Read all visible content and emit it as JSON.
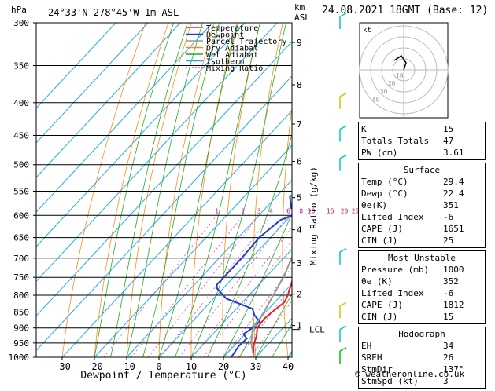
{
  "chart_data": {
    "type": "line",
    "subtype": "skew-t log-p sounding",
    "location": "24°33'N  278°45'W  1m  ASL",
    "datetime": "24.08.2021  18GMT  (Base: 12)",
    "y_unit_label": "hPa",
    "xlabel": "Dewpoint / Temperature (°C)",
    "x_ticks": [
      "-30",
      "-20",
      "-10",
      "0",
      "10",
      "20",
      "30",
      "40"
    ],
    "p_levels": [
      "300",
      "350",
      "400",
      "450",
      "500",
      "550",
      "600",
      "650",
      "700",
      "750",
      "800",
      "850",
      "900",
      "950",
      "1000"
    ],
    "alt_unit_label": "km\nASL",
    "alt_labels": [
      {
        "km": "9",
        "p": 322
      },
      {
        "km": "8",
        "p": 375
      },
      {
        "km": "7",
        "p": 432
      },
      {
        "km": "6",
        "p": 494
      },
      {
        "km": "5",
        "p": 563
      },
      {
        "km": "4",
        "p": 632
      },
      {
        "km": "3",
        "p": 712
      },
      {
        "km": "2",
        "p": 797
      },
      {
        "km": "1",
        "p": 892
      }
    ],
    "lcl_label": "LCL",
    "lcl_p": 905,
    "mixing_ratio_label": "Mixing Ratio (g/kg)",
    "mixing_ratio_values": [
      "1",
      "2",
      "3",
      "4",
      "6",
      "8",
      "10",
      "15",
      "20",
      "25"
    ],
    "legend": [
      "Temperature",
      "Dewpoint",
      "Parcel Trajectory",
      "Dry Adiabat",
      "Wet Adiabat",
      "Isotherm",
      "Mixing Ratio"
    ],
    "series": [
      {
        "name": "Temperature",
        "color": "#e8202a",
        "points": [
          [
            1000,
            29.4
          ],
          [
            960,
            26
          ],
          [
            925,
            24
          ],
          [
            900,
            22
          ],
          [
            870,
            21.5
          ],
          [
            850,
            22
          ],
          [
            820,
            23
          ],
          [
            800,
            22
          ],
          [
            770,
            20
          ],
          [
            750,
            18.5
          ],
          [
            700,
            14.5
          ],
          [
            650,
            10
          ],
          [
            600,
            5
          ],
          [
            550,
            0.5
          ],
          [
            500,
            -4.5
          ],
          [
            450,
            -10
          ],
          [
            400,
            -16
          ],
          [
            350,
            -24
          ],
          [
            300,
            -33
          ]
        ]
      },
      {
        "name": "Dewpoint",
        "color": "#1e3cdc",
        "points": [
          [
            1000,
            22.4
          ],
          [
            960,
            21.5
          ],
          [
            935,
            21.8
          ],
          [
            920,
            19.5
          ],
          [
            900,
            20.5
          ],
          [
            880,
            21
          ],
          [
            860,
            17.5
          ],
          [
            840,
            15
          ],
          [
            810,
            4
          ],
          [
            800,
            2
          ],
          [
            780,
            -2
          ],
          [
            770,
            -3
          ],
          [
            700,
            -3
          ],
          [
            650,
            -3.5
          ],
          [
            610,
            -2
          ],
          [
            590,
            3
          ],
          [
            585,
            -2
          ],
          [
            560,
            -6
          ],
          [
            545,
            0
          ],
          [
            520,
            -5
          ],
          [
            490,
            0
          ],
          [
            460,
            -5
          ],
          [
            440,
            -5.5
          ],
          [
            420,
            -5
          ],
          [
            390,
            -6
          ],
          [
            375,
            -8
          ],
          [
            362,
            -12
          ],
          [
            350,
            -15
          ],
          [
            340,
            -20
          ],
          [
            335,
            -22
          ],
          [
            325,
            -24
          ],
          [
            310,
            -30
          ],
          [
            300,
            -32
          ]
        ]
      },
      {
        "name": "Parcel Trajectory",
        "color": "#999999",
        "points": [
          [
            1000,
            29.4
          ],
          [
            950,
            24.5
          ],
          [
            905,
            21
          ],
          [
            850,
            19.5
          ],
          [
            800,
            17.5
          ],
          [
            750,
            15.5
          ],
          [
            700,
            12.5
          ],
          [
            650,
            9
          ],
          [
            600,
            5
          ],
          [
            550,
            1
          ],
          [
            500,
            -3
          ],
          [
            450,
            -6.5
          ],
          [
            400,
            -10.5
          ],
          [
            350,
            -16
          ],
          [
            300,
            -23
          ]
        ]
      }
    ],
    "hodograph": {
      "label": "kt",
      "ring_labels": [
        "10",
        "20",
        "30",
        "40"
      ],
      "hodo_points": [
        [
          0,
          0
        ],
        [
          1,
          -3
        ],
        [
          -1,
          -6
        ],
        [
          -4,
          -4
        ]
      ]
    },
    "wind_barbs": [
      {
        "p": 300,
        "color": "#00c8c8"
      },
      {
        "p": 400,
        "color": "#c8c800"
      },
      {
        "p": 450,
        "color": "#00c8c8"
      },
      {
        "p": 500,
        "color": "#00c8c8"
      },
      {
        "p": 700,
        "color": "#00c8c8"
      },
      {
        "p": 850,
        "color": "#c8c800"
      },
      {
        "p": 925,
        "color": "#00c8c8"
      },
      {
        "p": 1000,
        "color": "#00c800"
      }
    ]
  },
  "indices": {
    "K_label": "K",
    "K": "15",
    "TT_label": "Totals Totals",
    "TT": "47",
    "PW_label": "PW (cm)",
    "PW": "3.61"
  },
  "surface": {
    "title": "Surface",
    "rows": [
      {
        "label": "Temp (°C)",
        "value": "29.4"
      },
      {
        "label": "Dewp (°C)",
        "value": "22.4"
      },
      {
        "label": "θe(K)",
        "value": "351"
      },
      {
        "label": "Lifted Index",
        "value": "-6"
      },
      {
        "label": "CAPE (J)",
        "value": "1651"
      },
      {
        "label": "CIN (J)",
        "value": "25"
      }
    ]
  },
  "most_unstable": {
    "title": "Most Unstable",
    "rows": [
      {
        "label": "Pressure (mb)",
        "value": "1000"
      },
      {
        "label": "θe (K)",
        "value": "352"
      },
      {
        "label": "Lifted Index",
        "value": "-6"
      },
      {
        "label": "CAPE (J)",
        "value": "1812"
      },
      {
        "label": "CIN (J)",
        "value": "15"
      }
    ]
  },
  "hodograph_table": {
    "title": "Hodograph",
    "rows": [
      {
        "label": "EH",
        "value": "34"
      },
      {
        "label": "SREH",
        "value": "26"
      },
      {
        "label": "StmDir",
        "value": "137°"
      },
      {
        "label": "StmSpd (kt)",
        "value": "3"
      }
    ]
  },
  "copyright": "© weatheronline.co.uk"
}
